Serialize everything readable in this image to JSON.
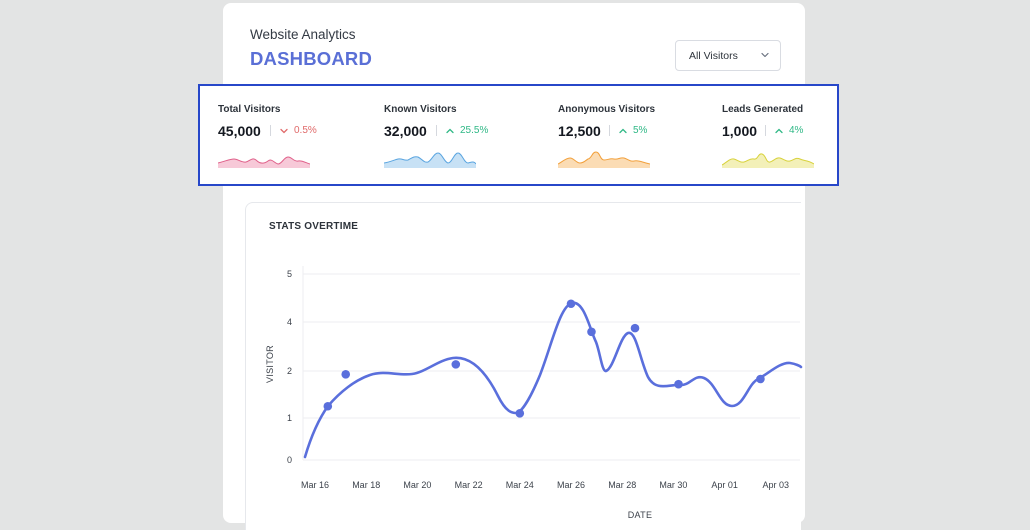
{
  "header": {
    "app_title": "Website Analytics",
    "page_title": "DASHBOARD",
    "filter": {
      "selected": "All Visitors"
    }
  },
  "stats": [
    {
      "label": "Total Visitors",
      "value": "45,000",
      "delta": "0.5%",
      "direction": "down",
      "color": "#e0608a",
      "fill": "#f7c9d8"
    },
    {
      "label": "Known Visitors",
      "value": "32,000",
      "delta": "25.5%",
      "direction": "up",
      "color": "#5aa5e0",
      "fill": "#c7e1f5"
    },
    {
      "label": "Anonymous Visitors",
      "value": "12,500",
      "delta": "5%",
      "direction": "up",
      "color": "#f2a13d",
      "fill": "#fbdcb4"
    },
    {
      "label": "Leads Generated",
      "value": "1,000",
      "delta": "4%",
      "direction": "up",
      "color": "#d8d23c",
      "fill": "#f3f0b8"
    }
  ],
  "colors": {
    "accent": "#5a6fd6",
    "line": "#5a6fdc",
    "up": "#2fb886",
    "down": "#e06a6a"
  },
  "chart_title": "STATS OVERTIME",
  "chart_data": {
    "type": "line",
    "title": "STATS OVERTIME",
    "xlabel": "DATE",
    "ylabel": "VISITOR",
    "x_ticks": [
      "Mar 16",
      "Mar 18",
      "Mar 20",
      "Mar 22",
      "Mar 24",
      "Mar 26",
      "Mar 28",
      "Mar 30",
      "Apr 01",
      "Apr 03"
    ],
    "y_ticks": [
      0,
      1,
      2,
      4,
      5
    ],
    "grid": true,
    "series": [
      {
        "points": [
          {
            "x": "Mar 16",
            "y": 0.05
          },
          {
            "x": "Mar 16.5",
            "y": 1.25
          },
          {
            "x": "Mar 17.2",
            "y": 1.93
          },
          {
            "x": "Mar 21.5",
            "y": 2.27
          },
          {
            "x": "Mar 24",
            "y": 1.1
          },
          {
            "x": "Mar 26",
            "y": 4.38
          },
          {
            "x": "Mar 26.8",
            "y": 3.6
          },
          {
            "x": "Mar 28.5",
            "y": 3.75
          },
          {
            "x": "Mar 30.2",
            "y": 1.72
          },
          {
            "x": "Apr 02.4",
            "y": 1.83
          }
        ]
      }
    ]
  }
}
